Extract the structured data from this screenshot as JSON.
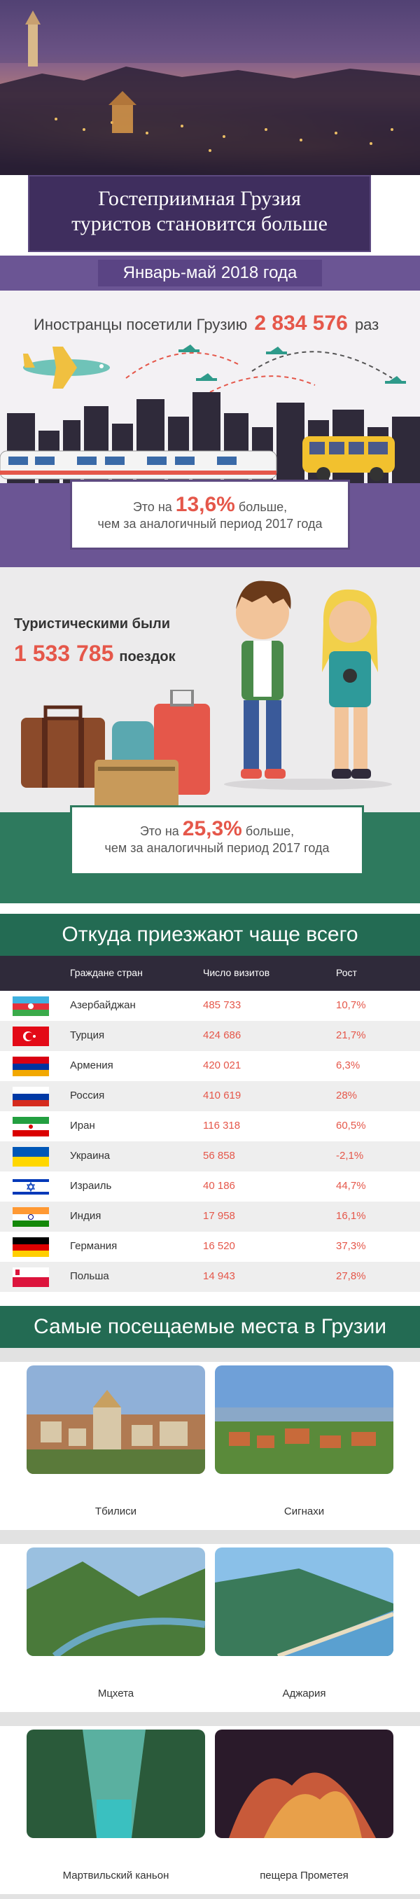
{
  "header": {
    "title_line1": "Гостеприимная Грузия",
    "title_line2": "туристов становится больше",
    "period": "Январь-май 2018 года"
  },
  "foreign": {
    "prefix": "Иностранцы посетили Грузию",
    "value": "2 834 576",
    "suffix": "раз"
  },
  "growth1": {
    "pre": "Это на",
    "pct": "13,6%",
    "post": "больше,",
    "line2": "чем за аналогичный период 2017 года"
  },
  "tourism": {
    "label": "Туристическими были",
    "value": "1 533 785",
    "unit": "поездок"
  },
  "growth2": {
    "pre": "Это на",
    "pct": "25,3%",
    "post": "больше,",
    "line2": "чем за аналогичный период 2017 года"
  },
  "countries": {
    "heading": "Откуда приезжают чаще всего",
    "columns": [
      "Граждане стран",
      "Число визитов",
      "Рост"
    ],
    "rows": [
      {
        "country": "Азербайджан",
        "visits": "485 733",
        "growth": "10,7%",
        "flag": "azerbaijan"
      },
      {
        "country": "Турция",
        "visits": "424 686",
        "growth": "21,7%",
        "flag": "turkey"
      },
      {
        "country": "Армения",
        "visits": "420 021",
        "growth": "6,3%",
        "flag": "armenia"
      },
      {
        "country": "Россия",
        "visits": "410 619",
        "growth": "28%",
        "flag": "russia"
      },
      {
        "country": "Иран",
        "visits": "116 318",
        "growth": "60,5%",
        "flag": "iran"
      },
      {
        "country": "Украина",
        "visits": "56 858",
        "growth": "-2,1%",
        "flag": "ukraine"
      },
      {
        "country": "Израиль",
        "visits": "40 186",
        "growth": "44,7%",
        "flag": "israel"
      },
      {
        "country": "Индия",
        "visits": "17 958",
        "growth": "16,1%",
        "flag": "india"
      },
      {
        "country": "Германия",
        "visits": "16 520",
        "growth": "37,3%",
        "flag": "germany"
      },
      {
        "country": "Польша",
        "visits": "14 943",
        "growth": "27,8%",
        "flag": "poland"
      }
    ]
  },
  "places": {
    "heading": "Самые посещаемые места в Грузии",
    "items": [
      {
        "name": "Тбилиси",
        "scene": "city"
      },
      {
        "name": "Сигнахи",
        "scene": "town"
      },
      {
        "name": "Мцхета",
        "scene": "valley"
      },
      {
        "name": "Аджария",
        "scene": "coast"
      },
      {
        "name": "Мартвильский каньон",
        "scene": "canyon"
      },
      {
        "name": "пещера Прометея",
        "scene": "cave"
      }
    ]
  },
  "colors": {
    "accent_red": "#e5574a",
    "purple": "#6b5594",
    "green": "#236b53"
  }
}
